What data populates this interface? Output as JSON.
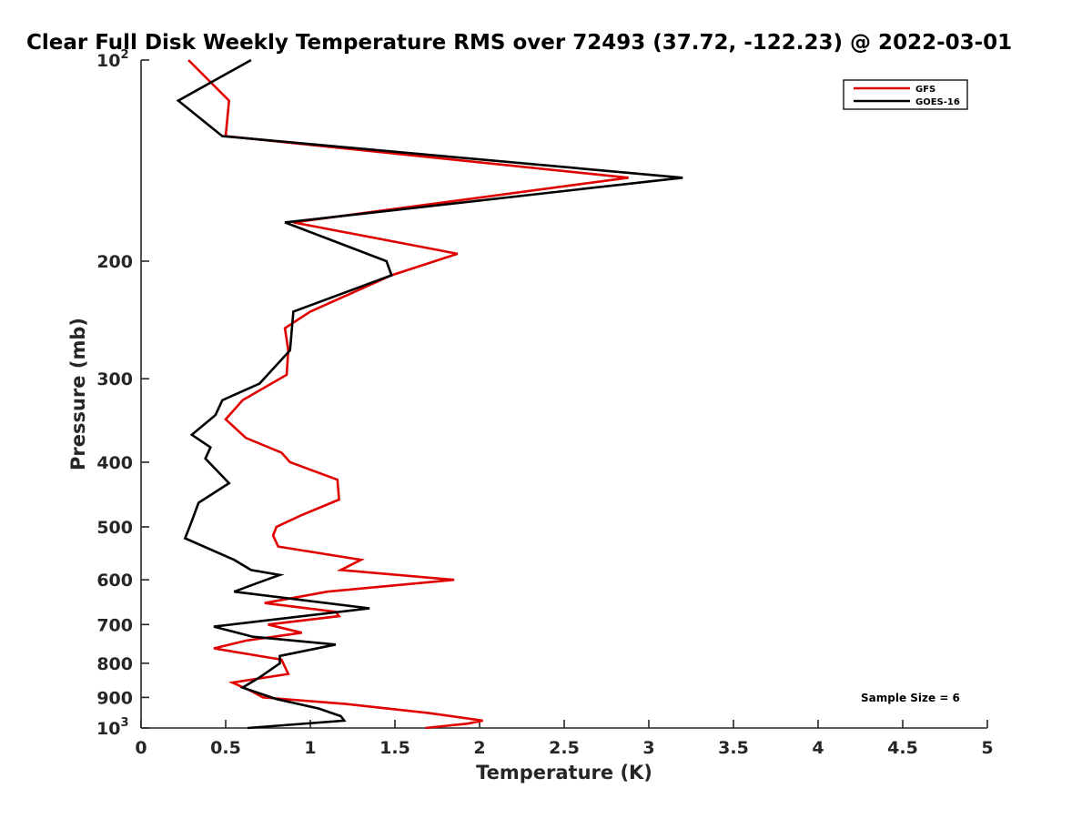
{
  "chart_data": {
    "type": "line",
    "title": "Clear Full Disk Weekly Temperature RMS over 72493 (37.72, -122.23) @ 2022-03-01",
    "xlabel": "Temperature (K)",
    "ylabel": "Pressure (mb)",
    "xlim": [
      0,
      5
    ],
    "ylim": [
      100,
      1000
    ],
    "y_scale": "log",
    "y_reversed": true,
    "x_ticks": [
      "0",
      "0.5",
      "1",
      "1.5",
      "2",
      "2.5",
      "3",
      "3.5",
      "4",
      "4.5",
      "5"
    ],
    "y_ticks": [
      {
        "value": 100,
        "label": "10",
        "sup": "2"
      },
      {
        "value": 200,
        "label": "200"
      },
      {
        "value": 300,
        "label": "300"
      },
      {
        "value": 400,
        "label": "400"
      },
      {
        "value": 500,
        "label": "500"
      },
      {
        "value": 600,
        "label": "600"
      },
      {
        "value": 700,
        "label": "700"
      },
      {
        "value": 800,
        "label": "800"
      },
      {
        "value": 900,
        "label": "900"
      },
      {
        "value": 1000,
        "label": "10",
        "sup": "3"
      }
    ],
    "grid": false,
    "legend_position": "top-right",
    "annotation": "Sample Size = 6",
    "series": [
      {
        "name": "GFS",
        "color": "#e00000",
        "points": [
          [
            0.28,
            100
          ],
          [
            0.52,
            115
          ],
          [
            0.5,
            130
          ],
          [
            2.88,
            150
          ],
          [
            0.9,
            175
          ],
          [
            1.87,
            195
          ],
          [
            1.48,
            210
          ],
          [
            1.0,
            238
          ],
          [
            0.85,
            252
          ],
          [
            0.87,
            272
          ],
          [
            0.86,
            296
          ],
          [
            0.6,
            323
          ],
          [
            0.5,
            345
          ],
          [
            0.62,
            368
          ],
          [
            0.83,
            387
          ],
          [
            0.88,
            400
          ],
          [
            1.16,
            425
          ],
          [
            1.17,
            455
          ],
          [
            0.95,
            480
          ],
          [
            0.8,
            500
          ],
          [
            0.78,
            515
          ],
          [
            0.81,
            535
          ],
          [
            1.3,
            560
          ],
          [
            1.18,
            580
          ],
          [
            1.85,
            600
          ],
          [
            1.1,
            625
          ],
          [
            0.73,
            650
          ],
          [
            1.15,
            670
          ],
          [
            1.17,
            680
          ],
          [
            0.75,
            700
          ],
          [
            0.95,
            720
          ],
          [
            0.62,
            740
          ],
          [
            0.43,
            760
          ],
          [
            0.83,
            790
          ],
          [
            0.85,
            810
          ],
          [
            0.87,
            830
          ],
          [
            0.54,
            855
          ],
          [
            0.65,
            880
          ],
          [
            0.72,
            900
          ],
          [
            1.2,
            920
          ],
          [
            1.7,
            950
          ],
          [
            2.02,
            975
          ],
          [
            1.93,
            985
          ],
          [
            1.68,
            1000
          ]
        ]
      },
      {
        "name": "GOES-16",
        "color": "#000000",
        "points": [
          [
            0.65,
            100
          ],
          [
            0.22,
            115
          ],
          [
            0.48,
            130
          ],
          [
            3.2,
            150
          ],
          [
            0.85,
            175
          ],
          [
            1.45,
            200
          ],
          [
            1.48,
            210
          ],
          [
            0.9,
            238
          ],
          [
            0.88,
            272
          ],
          [
            0.7,
            305
          ],
          [
            0.48,
            323
          ],
          [
            0.44,
            340
          ],
          [
            0.3,
            364
          ],
          [
            0.41,
            380
          ],
          [
            0.38,
            395
          ],
          [
            0.52,
            430
          ],
          [
            0.34,
            460
          ],
          [
            0.3,
            490
          ],
          [
            0.26,
            520
          ],
          [
            0.55,
            560
          ],
          [
            0.65,
            580
          ],
          [
            0.82,
            590
          ],
          [
            0.7,
            605
          ],
          [
            0.55,
            625
          ],
          [
            1.35,
            662
          ],
          [
            0.43,
            705
          ],
          [
            0.66,
            730
          ],
          [
            1.15,
            750
          ],
          [
            0.82,
            780
          ],
          [
            0.82,
            800
          ],
          [
            0.7,
            840
          ],
          [
            0.6,
            870
          ],
          [
            0.8,
            905
          ],
          [
            1.05,
            935
          ],
          [
            1.18,
            960
          ],
          [
            1.2,
            975
          ],
          [
            0.63,
            1000
          ]
        ]
      }
    ]
  }
}
